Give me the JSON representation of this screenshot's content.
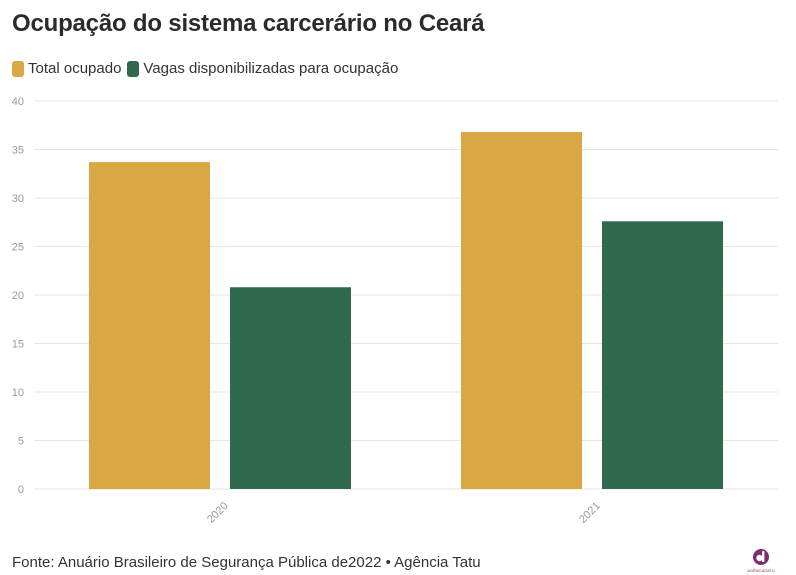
{
  "title": "Ocupação do sistema carcerário no Ceará",
  "footer": "Fonte: Anuário Brasileiro de Segurança Pública de2022 • Agência Tatu",
  "logo_text": "AGÊNCIATATU",
  "colors": {
    "total": "#d9a743",
    "vagas": "#2f6a4f",
    "grid": "#e6e6e6",
    "tick": "#999999",
    "logo": "#7b2d6d"
  },
  "chart_data": {
    "type": "bar",
    "categories": [
      "2020",
      "2021"
    ],
    "series": [
      {
        "name": "Total ocupado",
        "values": [
          33.7,
          36.8
        ]
      },
      {
        "name": "Vagas disponibilizadas para ocupação",
        "values": [
          20.8,
          27.6
        ]
      }
    ],
    "ylim": [
      0,
      40
    ],
    "yticks": [
      "0",
      "5",
      "10",
      "15",
      "20",
      "25",
      "30",
      "35",
      "40"
    ],
    "xlabel": "",
    "ylabel": "",
    "grid": true,
    "legend_position": "top-left"
  }
}
